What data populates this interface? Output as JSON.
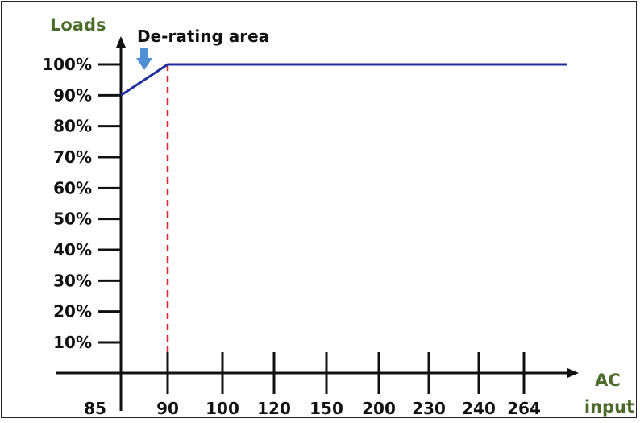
{
  "chart_data": {
    "type": "line",
    "title": "",
    "ylabel": "Loads",
    "xlabel": "AC input",
    "xlabel_lines": [
      "AC",
      "input"
    ],
    "categories": [
      "85",
      "90",
      "100",
      "120",
      "150",
      "200",
      "230",
      "240",
      "264"
    ],
    "y_ticks": [
      "10%",
      "20%",
      "30%",
      "40%",
      "50%",
      "60%",
      "70%",
      "80%",
      "90%",
      "100%"
    ],
    "ylim": [
      0,
      100
    ],
    "series": [
      {
        "values": [
          90,
          100,
          100,
          100,
          100,
          100,
          100,
          100,
          100
        ],
        "color": "#1f2f9e"
      }
    ],
    "annotation": {
      "text": "De-rating area",
      "marker": "down-arrow-icon",
      "marker_color": "#4f8fd4",
      "boundary_x": "90",
      "boundary_color": "#d62828"
    },
    "grid": false,
    "legend": "none"
  }
}
